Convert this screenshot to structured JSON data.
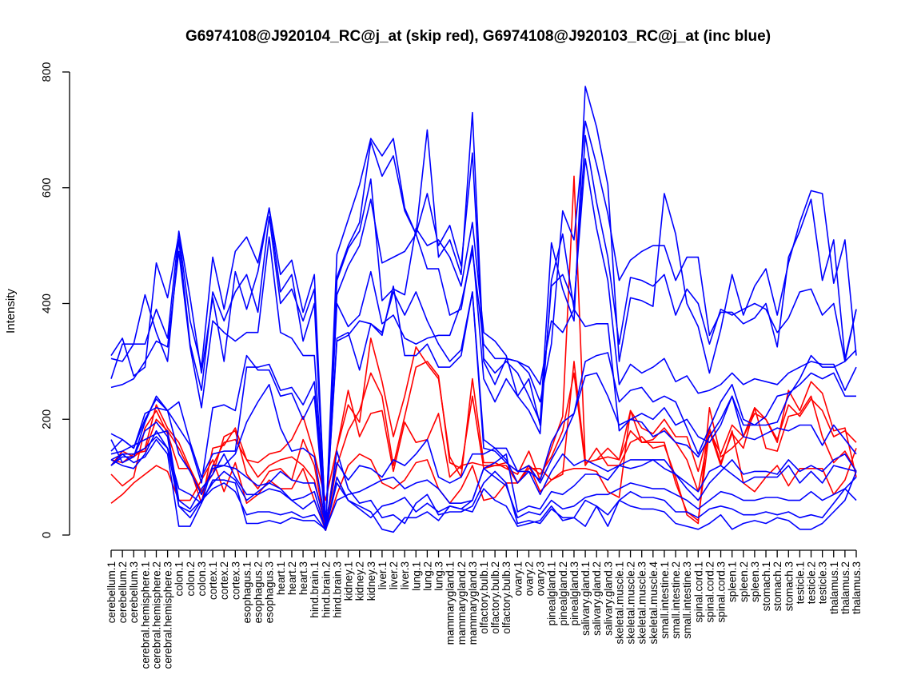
{
  "chart_data": {
    "type": "line",
    "title": "G6974108@J920104_RC@j_at (skip red), G6974108@J920103_RC@j_at (inc blue)",
    "xlabel": "",
    "ylabel": "Intensity",
    "ylim": [
      0,
      800
    ],
    "yticks": [
      0,
      200,
      400,
      600,
      800
    ],
    "grid": false,
    "legend": "none",
    "categories": [
      "cerebellum.1",
      "cerebellum.2",
      "cerebellum.3",
      "cerebral.hemisphere.1",
      "cerebral.hemisphere.2",
      "cerebral.hemisphere.3",
      "colon.1",
      "colon.2",
      "colon.3",
      "cortex.1",
      "cortex.2",
      "cortex.3",
      "esophagus.1",
      "esophagus.2",
      "esophagus.3",
      "heart.1",
      "heart.2",
      "heart.3",
      "hind.brain.1",
      "hind.brain.2",
      "hind.brain.3",
      "kidney.1",
      "kidney.2",
      "kidney.3",
      "liver.1",
      "liver.2",
      "liver.3",
      "lung.1",
      "lung.2",
      "lung.3",
      "mammarygland.1",
      "mammarygland.2",
      "mammarygland.3",
      "olfactory.bulb.1",
      "olfactory.bulb.2",
      "olfactory.bulb.3",
      "ovary.1",
      "ovary.2",
      "ovary.3",
      "pinealgland.1",
      "pinealgland.2",
      "pinealgland.3",
      "salivary.gland.1",
      "salivary.gland.2",
      "salivary.gland.3",
      "skeletal.muscle.1",
      "skeletal.muscle.2",
      "skeletal.muscle.3",
      "skeletal.muscle.4",
      "small.intestine.1",
      "small.intestine.2",
      "small.intestine.3",
      "spinal.cord.1",
      "spinal.cord.2",
      "spinal.cord.3",
      "spleen.1",
      "spleen.2",
      "spleen.3",
      "stomach.1",
      "stomach.2",
      "stomach.3",
      "testicle.1",
      "testicle.2",
      "testicle.3",
      "thalamus.1",
      "thalamus.2",
      "thalamus.3"
    ],
    "series": [
      {
        "color": "#ff0000",
        "values": [
          120,
          145,
          135,
          150,
          225,
          185,
          160,
          115,
          55,
          150,
          155,
          185,
          130,
          125,
          140,
          145,
          165,
          205,
          140,
          60,
          150,
          225,
          195,
          340,
          265,
          170,
          240,
          325,
          295,
          270,
          135,
          100,
          270,
          125,
          125,
          115,
          105,
          145,
          95,
          150,
          205,
          620,
          125,
          130,
          135,
          130,
          215,
          185,
          175,
          200,
          170,
          170,
          110,
          185,
          125,
          175,
          150,
          220,
          200,
          160,
          250,
          215,
          265,
          245,
          180,
          185,
          100
        ]
      },
      {
        "color": "#ff0000",
        "values": [
          105,
          85,
          100,
          185,
          215,
          175,
          115,
          115,
          75,
          105,
          170,
          180,
          105,
          80,
          110,
          115,
          95,
          165,
          120,
          10,
          150,
          250,
          170,
          210,
          215,
          110,
          195,
          160,
          165,
          210,
          100,
          120,
          125,
          120,
          120,
          120,
          90,
          120,
          75,
          95,
          105,
          300,
          125,
          130,
          150,
          130,
          180,
          160,
          165,
          185,
          160,
          130,
          75,
          180,
          140,
          190,
          170,
          220,
          150,
          145,
          205,
          210,
          240,
          170,
          125,
          145,
          110
        ]
      },
      {
        "color": "#ff0000",
        "values": [
          55,
          70,
          90,
          105,
          120,
          110,
          60,
          60,
          95,
          130,
          75,
          125,
          55,
          70,
          95,
          80,
          80,
          115,
          60,
          8,
          70,
          120,
          140,
          130,
          90,
          80,
          95,
          125,
          130,
          80,
          55,
          80,
          120,
          60,
          65,
          90,
          90,
          115,
          115,
          95,
          110,
          115,
          115,
          110,
          75,
          65,
          215,
          160,
          160,
          160,
          90,
          40,
          25,
          180,
          120,
          180,
          90,
          75,
          100,
          120,
          85,
          115,
          115,
          115,
          70,
          95,
          150
        ]
      },
      {
        "color": "#ff0000",
        "values": [
          130,
          125,
          140,
          145,
          200,
          180,
          150,
          110,
          70,
          120,
          160,
          165,
          130,
          100,
          120,
          130,
          135,
          120,
          95,
          12,
          120,
          180,
          215,
          280,
          240,
          120,
          205,
          290,
          300,
          275,
          125,
          115,
          240,
          115,
          120,
          125,
          110,
          120,
          105,
          135,
          180,
          280,
          120,
          150,
          120,
          120,
          160,
          170,
          150,
          155,
          100,
          35,
          20,
          220,
          135,
          150,
          170,
          210,
          200,
          165,
          225,
          205,
          235,
          215,
          170,
          180,
          160
        ]
      },
      {
        "color": "#0000ff",
        "values": [
          310,
          340,
          275,
          290,
          470,
          410,
          520,
          370,
          290,
          480,
          390,
          490,
          515,
          470,
          565,
          450,
          475,
          385,
          450,
          10,
          485,
          545,
          605,
          685,
          655,
          685,
          565,
          520,
          700,
          480,
          510,
          450,
          730,
          305,
          280,
          300,
          280,
          240,
          195,
          505,
          425,
          370,
          775,
          705,
          605,
          300,
          410,
          405,
          395,
          590,
          520,
          400,
          360,
          280,
          355,
          450,
          380,
          430,
          460,
          380,
          470,
          540,
          595,
          590,
          435,
          510,
          310
        ]
      },
      {
        "color": "#0000ff",
        "values": [
          305,
          300,
          330,
          330,
          390,
          340,
          525,
          410,
          280,
          410,
          300,
          455,
          390,
          455,
          565,
          420,
          450,
          335,
          400,
          10,
          445,
          500,
          540,
          680,
          620,
          655,
          560,
          520,
          590,
          500,
          535,
          465,
          660,
          300,
          260,
          305,
          300,
          280,
          230,
          330,
          560,
          510,
          715,
          640,
          555,
          440,
          475,
          490,
          500,
          500,
          440,
          480,
          480,
          345,
          385,
          385,
          365,
          375,
          400,
          325,
          480,
          525,
          580,
          440,
          510,
          305,
          390
        ]
      },
      {
        "color": "#0000ff",
        "values": [
          270,
          330,
          330,
          415,
          350,
          300,
          510,
          330,
          250,
          420,
          370,
          420,
          450,
          385,
          550,
          400,
          425,
          370,
          425,
          15,
          440,
          495,
          525,
          615,
          405,
          425,
          415,
          530,
          500,
          510,
          480,
          430,
          540,
          350,
          335,
          310,
          240,
          215,
          175,
          440,
          520,
          390,
          690,
          575,
          480,
          330,
          445,
          440,
          430,
          450,
          380,
          425,
          400,
          330,
          390,
          380,
          390,
          400,
          390,
          350,
          375,
          420,
          425,
          380,
          400,
          300,
          390
        ]
      },
      {
        "color": "#0000ff",
        "values": [
          255,
          260,
          270,
          300,
          335,
          325,
          490,
          325,
          220,
          370,
          350,
          335,
          350,
          350,
          515,
          350,
          340,
          310,
          310,
          15,
          415,
          465,
          500,
          580,
          470,
          480,
          490,
          520,
          460,
          460,
          380,
          390,
          500,
          270,
          230,
          270,
          240,
          270,
          190,
          430,
          450,
          400,
          650,
          530,
          440,
          260,
          295,
          280,
          290,
          305,
          265,
          275,
          245,
          250,
          260,
          280,
          260,
          270,
          265,
          260,
          280,
          290,
          300,
          295,
          295,
          250,
          290
        ]
      },
      {
        "color": "#0000ff",
        "values": [
          175,
          165,
          150,
          210,
          220,
          215,
          185,
          155,
          90,
          220,
          225,
          215,
          310,
          285,
          285,
          240,
          245,
          200,
          240,
          15,
          400,
          360,
          380,
          455,
          365,
          380,
          340,
          330,
          340,
          345,
          345,
          400,
          490,
          330,
          305,
          305,
          300,
          290,
          260,
          370,
          350,
          390,
          360,
          365,
          365,
          180,
          200,
          210,
          200,
          220,
          190,
          200,
          170,
          160,
          190,
          240,
          190,
          190,
          190,
          195,
          240,
          270,
          310,
          290,
          290,
          300,
          320
        ]
      },
      {
        "color": "#0000ff",
        "values": [
          165,
          125,
          135,
          195,
          240,
          215,
          230,
          160,
          100,
          140,
          145,
          145,
          290,
          290,
          295,
          250,
          255,
          225,
          265,
          20,
          335,
          345,
          370,
          365,
          350,
          420,
          380,
          420,
          370,
          330,
          300,
          320,
          420,
          165,
          150,
          150,
          110,
          110,
          95,
          160,
          195,
          210,
          300,
          310,
          315,
          230,
          250,
          255,
          230,
          240,
          230,
          185,
          140,
          185,
          230,
          260,
          200,
          190,
          205,
          240,
          245,
          260,
          280,
          270,
          280,
          240,
          240
        ]
      },
      {
        "color": "#0000ff",
        "values": [
          145,
          165,
          150,
          200,
          235,
          215,
          140,
          110,
          70,
          115,
          120,
          140,
          195,
          230,
          260,
          185,
          145,
          150,
          135,
          20,
          340,
          350,
          285,
          365,
          345,
          430,
          310,
          310,
          330,
          290,
          290,
          310,
          420,
          150,
          145,
          125,
          110,
          120,
          90,
          130,
          165,
          210,
          275,
          280,
          240,
          190,
          200,
          195,
          170,
          180,
          160,
          155,
          135,
          170,
          200,
          240,
          170,
          165,
          175,
          185,
          180,
          190,
          190,
          155,
          190,
          165,
          140
        ]
      },
      {
        "color": "#0000ff",
        "values": [
          130,
          120,
          115,
          140,
          180,
          150,
          80,
          70,
          55,
          120,
          120,
          115,
          100,
          85,
          90,
          110,
          95,
          90,
          90,
          20,
          125,
          95,
          120,
          115,
          100,
          130,
          120,
          140,
          165,
          100,
          90,
          100,
          140,
          140,
          150,
          130,
          90,
          110,
          70,
          110,
          140,
          120,
          130,
          120,
          110,
          120,
          115,
          120,
          130,
          130,
          105,
          80,
          60,
          90,
          110,
          130,
          105,
          110,
          110,
          105,
          130,
          110,
          120,
          110,
          130,
          140,
          110
        ]
      },
      {
        "color": "#0000ff",
        "values": [
          140,
          145,
          155,
          165,
          175,
          180,
          60,
          45,
          80,
          105,
          140,
          100,
          70,
          70,
          80,
          75,
          60,
          65,
          75,
          10,
          60,
          70,
          75,
          85,
          95,
          100,
          80,
          90,
          95,
          80,
          55,
          55,
          60,
          115,
          125,
          140,
          40,
          50,
          45,
          75,
          70,
          85,
          105,
          105,
          95,
          120,
          130,
          130,
          130,
          115,
          105,
          90,
          75,
          110,
          120,
          105,
          90,
          100,
          100,
          100,
          120,
          90,
          110,
          90,
          120,
          115,
          110
        ]
      },
      {
        "color": "#0000ff",
        "values": [
          120,
          135,
          135,
          180,
          195,
          170,
          50,
          40,
          60,
          90,
          110,
          95,
          60,
          75,
          90,
          80,
          60,
          45,
          60,
          10,
          90,
          60,
          45,
          30,
          50,
          55,
          65,
          40,
          55,
          40,
          50,
          45,
          60,
          115,
          100,
          85,
          30,
          40,
          35,
          60,
          45,
          50,
          65,
          70,
          70,
          80,
          90,
          85,
          80,
          80,
          70,
          60,
          45,
          60,
          75,
          70,
          60,
          60,
          65,
          65,
          60,
          60,
          75,
          60,
          70,
          80,
          100
        ]
      },
      {
        "color": "#0000ff",
        "values": [
          120,
          140,
          125,
          135,
          165,
          140,
          15,
          15,
          55,
          95,
          95,
          90,
          20,
          20,
          25,
          20,
          30,
          25,
          25,
          10,
          145,
          80,
          55,
          60,
          30,
          35,
          20,
          55,
          70,
          35,
          40,
          40,
          50,
          90,
          110,
          90,
          20,
          25,
          20,
          45,
          30,
          30,
          60,
          50,
          35,
          60,
          75,
          65,
          65,
          60,
          40,
          40,
          30,
          45,
          50,
          45,
          35,
          35,
          40,
          35,
          40,
          30,
          35,
          30,
          55,
          80,
          60
        ]
      },
      {
        "color": "#0000ff",
        "values": [
          130,
          140,
          140,
          150,
          170,
          150,
          50,
          30,
          60,
          80,
          90,
          75,
          35,
          40,
          40,
          35,
          40,
          30,
          35,
          8,
          100,
          60,
          50,
          40,
          10,
          5,
          30,
          30,
          40,
          25,
          50,
          45,
          40,
          80,
          60,
          50,
          15,
          20,
          25,
          50,
          25,
          30,
          15,
          50,
          15,
          60,
          50,
          45,
          45,
          40,
          20,
          15,
          10,
          20,
          35,
          10,
          20,
          25,
          20,
          30,
          25,
          10,
          10,
          20,
          40,
          60,
          110
        ]
      }
    ]
  }
}
